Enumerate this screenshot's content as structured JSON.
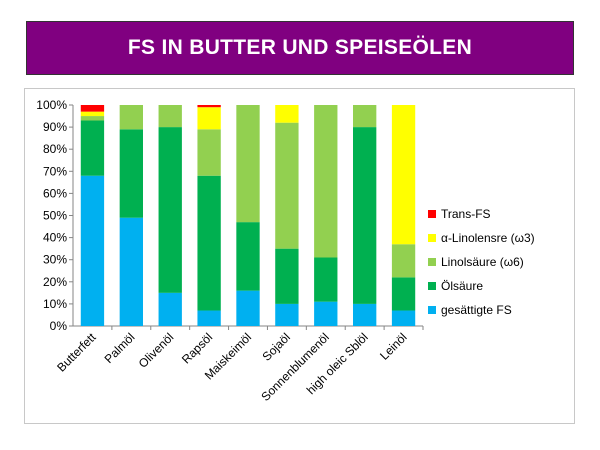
{
  "header": {
    "title": "FS IN BUTTER UND SPEISEÖLEN"
  },
  "chart_data": {
    "type": "bar",
    "stacked": true,
    "percent_stacked": true,
    "categories": [
      "Butterfett",
      "Palmöl",
      "Olivenöl",
      "Rapsöl",
      "Maiskeimöl",
      "Sojaöl",
      "Sonnenblumenöl",
      "high oleic Sblöl",
      "Leinöl"
    ],
    "series": [
      {
        "name": "gesättigte FS",
        "color": "#00b0f0",
        "values": [
          68,
          49,
          15,
          7,
          16,
          10,
          11,
          10,
          7
        ]
      },
      {
        "name": "Ölsäure",
        "color": "#00b050",
        "values": [
          25,
          40,
          75,
          61,
          31,
          25,
          20,
          80,
          15
        ]
      },
      {
        "name": "Linolsäure (ω6)",
        "color": "#92d050",
        "values": [
          2,
          11,
          10,
          21,
          53,
          57,
          69,
          10,
          15
        ]
      },
      {
        "name": "α-Linolensre (ω3)",
        "color": "#ffff00",
        "values": [
          2,
          0,
          0,
          10,
          0,
          8,
          0,
          0,
          63
        ]
      },
      {
        "name": "Trans-FS",
        "color": "#ff0000",
        "values": [
          3,
          0,
          0,
          1,
          0,
          0,
          0,
          0,
          0
        ]
      }
    ],
    "yticks": [
      "0%",
      "10%",
      "20%",
      "30%",
      "40%",
      "50%",
      "60%",
      "70%",
      "80%",
      "90%",
      "100%"
    ],
    "ylim": [
      0,
      100
    ],
    "grid": false,
    "legend_position": "right"
  }
}
